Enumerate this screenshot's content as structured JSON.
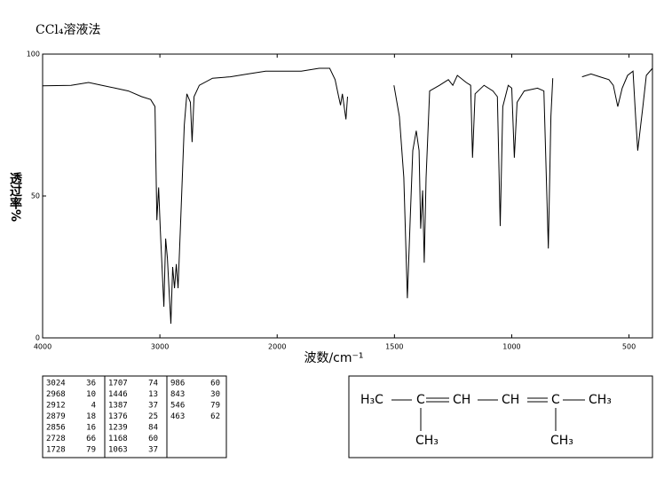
{
  "chart_data": {
    "type": "line",
    "title": "CCl₄溶液法",
    "xlabel": "波数/cm⁻¹",
    "ylabel": "透过率%",
    "xlim": [
      4000,
      400
    ],
    "x_break": 2000,
    "x_break_expand": 2,
    "xticks": [
      4000,
      3000,
      2000,
      1500,
      1000,
      500
    ],
    "ylim": [
      0,
      100
    ],
    "yticks": [
      0,
      50,
      100
    ],
    "x": [
      4000,
      3758,
      3608,
      3494,
      3381,
      3268,
      3155,
      3079,
      3042,
      3026,
      3011,
      2996,
      2966,
      2951,
      2936,
      2921,
      2906,
      2891,
      2875,
      2860,
      2845,
      2823,
      2792,
      2770,
      2740,
      2725,
      2709,
      2664,
      2551,
      2400,
      2249,
      2098,
      1973,
      1897,
      1821,
      1776,
      1753,
      1738,
      1730,
      1722,
      1707,
      1700,
      1600,
      1502,
      1479,
      1460,
      1445,
      1433,
      1422,
      1407,
      1395,
      1388,
      1380,
      1373,
      1365,
      1350,
      1308,
      1270,
      1251,
      1232,
      1194,
      1175,
      1167,
      1156,
      1118,
      1080,
      1061,
      1049,
      1038,
      1015,
      1000,
      989,
      977,
      947,
      890,
      863,
      844,
      833,
      825,
      760,
      700,
      662,
      624,
      586,
      567,
      548,
      529,
      506,
      483,
      472,
      463,
      441,
      426,
      400
    ],
    "series": [
      {
        "color": "#000000",
        "values": [
          88.8,
          89,
          90,
          89,
          88,
          87,
          85,
          84,
          81.5,
          41.5,
          53,
          38,
          11,
          35,
          28,
          16,
          5,
          25,
          17.5,
          26,
          17.5,
          41,
          75,
          86,
          83,
          69,
          85,
          89,
          91.5,
          92,
          93,
          94,
          94,
          94,
          95,
          95,
          91,
          85,
          82,
          86,
          77,
          85,
          null,
          89,
          78,
          56.5,
          14,
          41,
          66,
          73,
          66,
          38.5,
          52,
          26.5,
          56.5,
          87,
          89,
          91,
          89,
          92.5,
          90,
          89,
          63.5,
          86,
          89,
          87,
          85,
          39.4,
          81.5,
          89,
          88,
          63.5,
          83,
          87,
          88,
          87,
          31.5,
          78,
          91.5,
          null,
          92,
          93,
          92,
          91,
          89,
          81.5,
          88,
          92.5,
          94,
          78,
          66,
          81.5,
          92.5,
          95
        ]
      }
    ]
  },
  "peak_table": {
    "columns": [
      [
        [
          3024,
          36
        ],
        [
          2968,
          10
        ],
        [
          2912,
          4
        ],
        [
          2879,
          18
        ],
        [
          2856,
          16
        ],
        [
          2728,
          66
        ],
        [
          1728,
          79
        ]
      ],
      [
        [
          1707,
          74
        ],
        [
          1446,
          13
        ],
        [
          1387,
          37
        ],
        [
          1376,
          25
        ],
        [
          1239,
          84
        ],
        [
          1168,
          60
        ],
        [
          1063,
          37
        ]
      ],
      [
        [
          986,
          60
        ],
        [
          843,
          30
        ],
        [
          546,
          79
        ],
        [
          463,
          62
        ]
      ]
    ]
  },
  "structure": {
    "chain": [
      "H₃C",
      "C",
      "CH",
      "CH",
      "C",
      "CH₃"
    ],
    "branches": [
      "CH₃",
      "CH₃"
    ]
  }
}
